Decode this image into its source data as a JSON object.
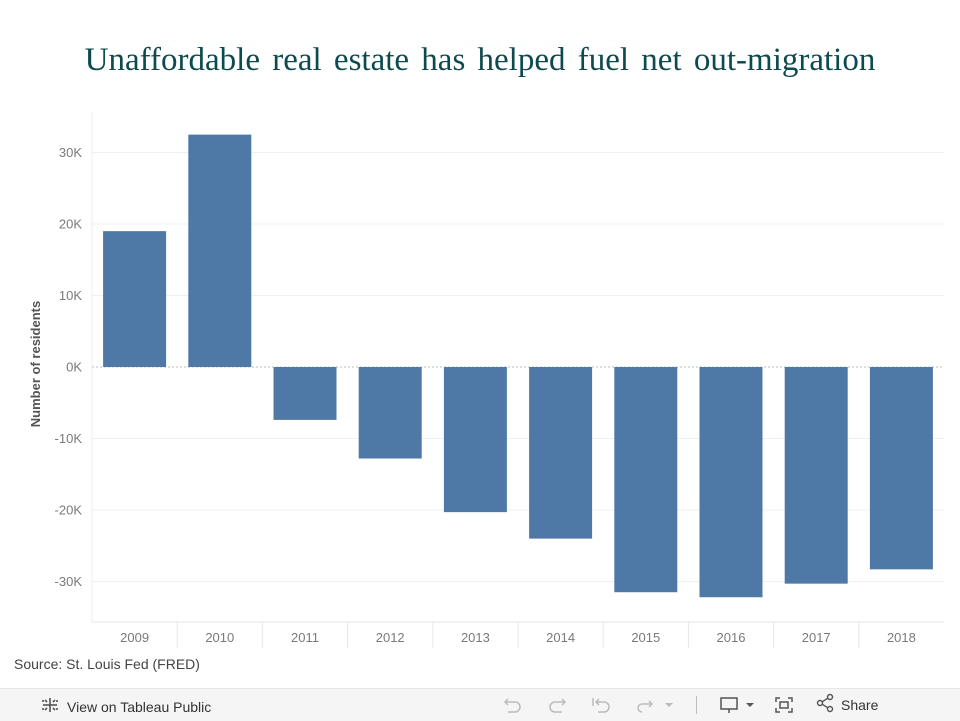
{
  "chart_data": {
    "type": "bar",
    "title": "Unaffordable real estate has helped fuel net out-migration",
    "xlabel": "",
    "ylabel": "Number of residents",
    "categories": [
      "2009",
      "2010",
      "2011",
      "2012",
      "2013",
      "2014",
      "2015",
      "2016",
      "2017",
      "2018"
    ],
    "values": [
      19000,
      32500,
      -7400,
      -12800,
      -20300,
      -24000,
      -31500,
      -32200,
      -30300,
      -28300
    ],
    "ylim": [
      -36000,
      36000
    ],
    "yticks": [
      30000,
      20000,
      10000,
      0,
      -10000,
      -20000,
      -30000
    ],
    "ytick_labels": [
      "30K",
      "20K",
      "10K",
      "0K",
      "-10K",
      "-20K",
      "-30K"
    ],
    "bar_color": "#4e79a7",
    "grid": true,
    "zero_line": "dotted"
  },
  "source": "Source: St. Louis Fed (FRED)",
  "toolbar": {
    "view_label": "View on Tableau Public",
    "share_label": "Share",
    "icons": [
      "tableau-logo-icon",
      "undo-icon",
      "redo-icon",
      "revert-icon",
      "refresh-icon",
      "pause-dropdown-icon",
      "download-icon",
      "fullscreen-icon",
      "share-icon"
    ]
  }
}
